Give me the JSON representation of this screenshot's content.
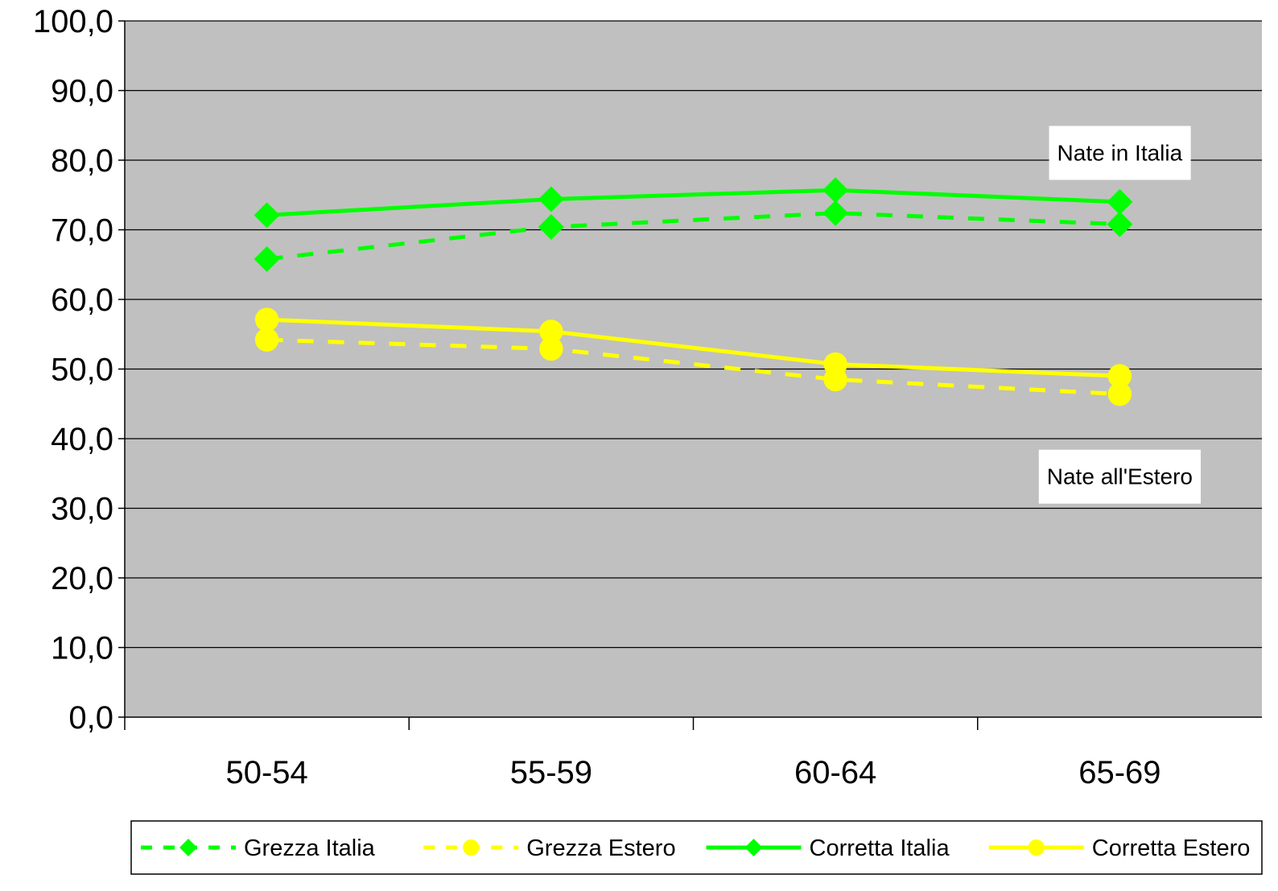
{
  "chart_data": {
    "type": "line",
    "categories": [
      "50-54",
      "55-59",
      "60-64",
      "65-69"
    ],
    "series": [
      {
        "name": "Grezza Italia",
        "values": [
          65.8,
          70.4,
          72.4,
          70.8
        ],
        "color": "#00ff00",
        "dashed": true,
        "marker": "diamond"
      },
      {
        "name": "Grezza Estero",
        "values": [
          54.2,
          52.9,
          48.5,
          46.4
        ],
        "color": "#ffff00",
        "dashed": true,
        "marker": "circle"
      },
      {
        "name": "Corretta Italia",
        "values": [
          72.1,
          74.4,
          75.7,
          74.0
        ],
        "color": "#00ff00",
        "dashed": false,
        "marker": "diamond"
      },
      {
        "name": "Corretta Estero",
        "values": [
          57.1,
          55.4,
          50.7,
          49.0
        ],
        "color": "#ffff00",
        "dashed": false,
        "marker": "circle"
      }
    ],
    "yticks": [
      "0,0",
      "10,0",
      "20,0",
      "30,0",
      "40,0",
      "50,0",
      "60,0",
      "70,0",
      "80,0",
      "90,0",
      "100,0"
    ],
    "ylim": [
      0,
      100
    ],
    "ytick_step": 10,
    "grid": true,
    "plot_background": "#c0c0c0",
    "legend_position": "bottom",
    "annotations": [
      {
        "text": "Nate in Italia",
        "x": 3.0,
        "y": 81.1
      },
      {
        "text": "Nate all'Estero",
        "x": 3.0,
        "y": 34.6
      }
    ],
    "title": "",
    "xlabel": "",
    "ylabel": ""
  }
}
